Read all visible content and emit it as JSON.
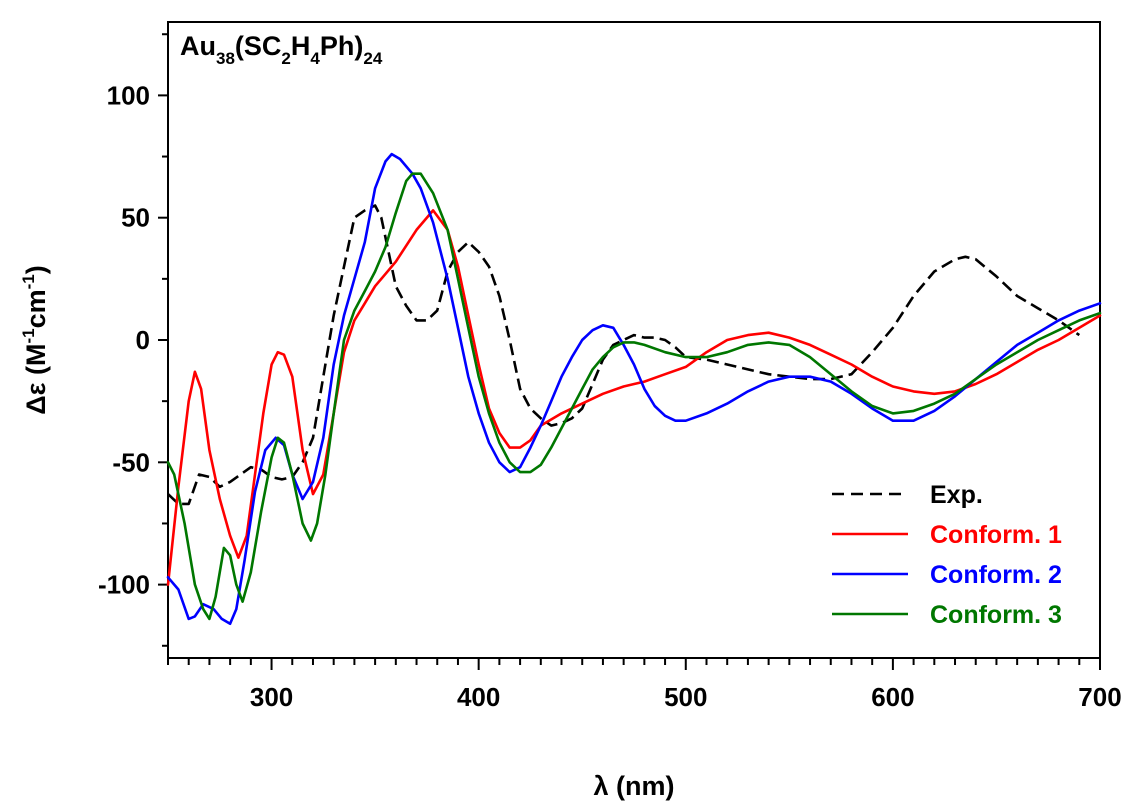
{
  "chart_data": {
    "type": "line",
    "title": "",
    "annotation": {
      "base": "Au",
      "sub1": "38",
      "mid1": "(SC",
      "sub2": "2",
      "mid2": "H",
      "sub3": "4",
      "mid3": "Ph)",
      "sub4": "24"
    },
    "xlabel": {
      "symbol": "λ",
      "unit": " (nm)"
    },
    "ylabel": {
      "symbol": "Δε",
      "open": " (M",
      "sup1": "-1",
      "mid": "cm",
      "sup2": "-1",
      "close": ")"
    },
    "xlim": [
      250,
      700
    ],
    "ylim": [
      -130,
      130
    ],
    "xticks": [
      300,
      400,
      500,
      600,
      700
    ],
    "xtick_labels": [
      "300",
      "400",
      "500",
      "600",
      "700"
    ],
    "yticks": [
      -100,
      -50,
      0,
      50,
      100
    ],
    "ytick_labels": [
      "-100",
      "-50",
      "0",
      "50",
      "100"
    ],
    "grid": false,
    "legend_position": "bottom-right",
    "series": [
      {
        "name": "Exp.",
        "color": "#000000",
        "dash": true,
        "points": [
          [
            250,
            -63
          ],
          [
            255,
            -67
          ],
          [
            260,
            -67
          ],
          [
            265,
            -55
          ],
          [
            270,
            -56
          ],
          [
            275,
            -60
          ],
          [
            280,
            -58
          ],
          [
            285,
            -55
          ],
          [
            290,
            -52
          ],
          [
            295,
            -53
          ],
          [
            300,
            -56
          ],
          [
            305,
            -57
          ],
          [
            310,
            -56
          ],
          [
            315,
            -50
          ],
          [
            320,
            -40
          ],
          [
            325,
            -15
          ],
          [
            330,
            10
          ],
          [
            335,
            30
          ],
          [
            340,
            50
          ],
          [
            345,
            53
          ],
          [
            350,
            55
          ],
          [
            353,
            50
          ],
          [
            356,
            38
          ],
          [
            360,
            22
          ],
          [
            365,
            14
          ],
          [
            370,
            8
          ],
          [
            375,
            8
          ],
          [
            380,
            12
          ],
          [
            385,
            28
          ],
          [
            390,
            36
          ],
          [
            395,
            40
          ],
          [
            400,
            36
          ],
          [
            405,
            30
          ],
          [
            410,
            18
          ],
          [
            415,
            0
          ],
          [
            420,
            -20
          ],
          [
            425,
            -28
          ],
          [
            430,
            -32
          ],
          [
            435,
            -35
          ],
          [
            440,
            -34
          ],
          [
            445,
            -32
          ],
          [
            450,
            -28
          ],
          [
            455,
            -18
          ],
          [
            460,
            -8
          ],
          [
            465,
            -2
          ],
          [
            470,
            0
          ],
          [
            475,
            2
          ],
          [
            480,
            1
          ],
          [
            485,
            1
          ],
          [
            490,
            0
          ],
          [
            495,
            -3
          ],
          [
            500,
            -7
          ],
          [
            510,
            -8
          ],
          [
            520,
            -10
          ],
          [
            530,
            -12
          ],
          [
            540,
            -14
          ],
          [
            550,
            -15
          ],
          [
            560,
            -16
          ],
          [
            570,
            -16
          ],
          [
            580,
            -14
          ],
          [
            590,
            -5
          ],
          [
            600,
            5
          ],
          [
            610,
            18
          ],
          [
            620,
            28
          ],
          [
            630,
            33
          ],
          [
            635,
            34
          ],
          [
            640,
            33
          ],
          [
            650,
            26
          ],
          [
            660,
            18
          ],
          [
            670,
            13
          ],
          [
            680,
            8
          ],
          [
            690,
            2
          ]
        ]
      },
      {
        "name": "Conform. 1",
        "color": "#ff0000",
        "dash": false,
        "points": [
          [
            250,
            -100
          ],
          [
            255,
            -60
          ],
          [
            260,
            -25
          ],
          [
            263,
            -13
          ],
          [
            266,
            -20
          ],
          [
            270,
            -45
          ],
          [
            275,
            -65
          ],
          [
            280,
            -80
          ],
          [
            284,
            -89
          ],
          [
            288,
            -80
          ],
          [
            292,
            -55
          ],
          [
            296,
            -30
          ],
          [
            300,
            -10
          ],
          [
            303,
            -5
          ],
          [
            306,
            -6
          ],
          [
            310,
            -15
          ],
          [
            315,
            -45
          ],
          [
            320,
            -63
          ],
          [
            325,
            -55
          ],
          [
            330,
            -30
          ],
          [
            335,
            -5
          ],
          [
            340,
            8
          ],
          [
            345,
            15
          ],
          [
            350,
            22
          ],
          [
            360,
            32
          ],
          [
            370,
            45
          ],
          [
            378,
            53
          ],
          [
            385,
            45
          ],
          [
            390,
            30
          ],
          [
            395,
            10
          ],
          [
            400,
            -10
          ],
          [
            405,
            -28
          ],
          [
            410,
            -38
          ],
          [
            415,
            -44
          ],
          [
            420,
            -44
          ],
          [
            425,
            -41
          ],
          [
            430,
            -35
          ],
          [
            440,
            -30
          ],
          [
            450,
            -26
          ],
          [
            460,
            -22
          ],
          [
            470,
            -19
          ],
          [
            480,
            -17
          ],
          [
            490,
            -14
          ],
          [
            500,
            -11
          ],
          [
            510,
            -5
          ],
          [
            520,
            0
          ],
          [
            530,
            2
          ],
          [
            540,
            3
          ],
          [
            550,
            1
          ],
          [
            560,
            -2
          ],
          [
            570,
            -6
          ],
          [
            580,
            -10
          ],
          [
            590,
            -15
          ],
          [
            600,
            -19
          ],
          [
            610,
            -21
          ],
          [
            620,
            -22
          ],
          [
            630,
            -21
          ],
          [
            640,
            -18
          ],
          [
            650,
            -14
          ],
          [
            660,
            -9
          ],
          [
            670,
            -4
          ],
          [
            680,
            0
          ],
          [
            690,
            5
          ],
          [
            700,
            10
          ]
        ]
      },
      {
        "name": "Conform. 2",
        "color": "#0000ff",
        "dash": false,
        "points": [
          [
            250,
            -97
          ],
          [
            255,
            -102
          ],
          [
            260,
            -114
          ],
          [
            263,
            -113
          ],
          [
            267,
            -108
          ],
          [
            272,
            -110
          ],
          [
            276,
            -114
          ],
          [
            280,
            -116
          ],
          [
            283,
            -110
          ],
          [
            287,
            -90
          ],
          [
            292,
            -62
          ],
          [
            297,
            -45
          ],
          [
            302,
            -40
          ],
          [
            306,
            -43
          ],
          [
            310,
            -55
          ],
          [
            315,
            -65
          ],
          [
            320,
            -58
          ],
          [
            325,
            -40
          ],
          [
            330,
            -10
          ],
          [
            335,
            10
          ],
          [
            340,
            25
          ],
          [
            345,
            40
          ],
          [
            350,
            62
          ],
          [
            355,
            73
          ],
          [
            358,
            76
          ],
          [
            362,
            74
          ],
          [
            368,
            68
          ],
          [
            372,
            62
          ],
          [
            378,
            48
          ],
          [
            385,
            25
          ],
          [
            390,
            5
          ],
          [
            395,
            -15
          ],
          [
            400,
            -30
          ],
          [
            405,
            -42
          ],
          [
            410,
            -50
          ],
          [
            415,
            -54
          ],
          [
            420,
            -52
          ],
          [
            425,
            -44
          ],
          [
            430,
            -35
          ],
          [
            435,
            -25
          ],
          [
            440,
            -15
          ],
          [
            445,
            -7
          ],
          [
            450,
            0
          ],
          [
            455,
            4
          ],
          [
            460,
            6
          ],
          [
            465,
            5
          ],
          [
            470,
            -2
          ],
          [
            475,
            -10
          ],
          [
            480,
            -20
          ],
          [
            485,
            -27
          ],
          [
            490,
            -31
          ],
          [
            495,
            -33
          ],
          [
            500,
            -33
          ],
          [
            510,
            -30
          ],
          [
            520,
            -26
          ],
          [
            530,
            -21
          ],
          [
            540,
            -17
          ],
          [
            550,
            -15
          ],
          [
            560,
            -15
          ],
          [
            570,
            -17
          ],
          [
            580,
            -22
          ],
          [
            590,
            -28
          ],
          [
            600,
            -33
          ],
          [
            610,
            -33
          ],
          [
            620,
            -29
          ],
          [
            630,
            -23
          ],
          [
            640,
            -16
          ],
          [
            650,
            -9
          ],
          [
            660,
            -2
          ],
          [
            670,
            3
          ],
          [
            680,
            8
          ],
          [
            690,
            12
          ],
          [
            700,
            15
          ]
        ]
      },
      {
        "name": "Conform. 3",
        "color": "#007700",
        "dash": false,
        "points": [
          [
            250,
            -50
          ],
          [
            253,
            -55
          ],
          [
            258,
            -75
          ],
          [
            263,
            -100
          ],
          [
            267,
            -110
          ],
          [
            270,
            -114
          ],
          [
            273,
            -105
          ],
          [
            277,
            -85
          ],
          [
            280,
            -88
          ],
          [
            283,
            -100
          ],
          [
            286,
            -107
          ],
          [
            290,
            -95
          ],
          [
            295,
            -70
          ],
          [
            300,
            -48
          ],
          [
            303,
            -40
          ],
          [
            306,
            -42
          ],
          [
            310,
            -55
          ],
          [
            315,
            -75
          ],
          [
            319,
            -82
          ],
          [
            322,
            -75
          ],
          [
            326,
            -55
          ],
          [
            330,
            -30
          ],
          [
            335,
            0
          ],
          [
            340,
            12
          ],
          [
            345,
            20
          ],
          [
            350,
            28
          ],
          [
            355,
            38
          ],
          [
            360,
            52
          ],
          [
            365,
            65
          ],
          [
            368,
            68
          ],
          [
            372,
            68
          ],
          [
            378,
            60
          ],
          [
            385,
            45
          ],
          [
            390,
            25
          ],
          [
            395,
            5
          ],
          [
            400,
            -15
          ],
          [
            405,
            -30
          ],
          [
            410,
            -42
          ],
          [
            415,
            -50
          ],
          [
            420,
            -54
          ],
          [
            425,
            -54
          ],
          [
            430,
            -51
          ],
          [
            435,
            -44
          ],
          [
            440,
            -36
          ],
          [
            445,
            -28
          ],
          [
            450,
            -20
          ],
          [
            455,
            -12
          ],
          [
            460,
            -7
          ],
          [
            465,
            -3
          ],
          [
            470,
            -1
          ],
          [
            475,
            -1
          ],
          [
            480,
            -2
          ],
          [
            490,
            -5
          ],
          [
            500,
            -7
          ],
          [
            510,
            -7
          ],
          [
            520,
            -5
          ],
          [
            530,
            -2
          ],
          [
            540,
            -1
          ],
          [
            550,
            -2
          ],
          [
            560,
            -7
          ],
          [
            570,
            -14
          ],
          [
            580,
            -21
          ],
          [
            590,
            -27
          ],
          [
            600,
            -30
          ],
          [
            610,
            -29
          ],
          [
            620,
            -26
          ],
          [
            630,
            -22
          ],
          [
            640,
            -16
          ],
          [
            650,
            -10
          ],
          [
            660,
            -5
          ],
          [
            670,
            0
          ],
          [
            680,
            4
          ],
          [
            690,
            8
          ],
          [
            700,
            11
          ]
        ]
      }
    ]
  }
}
